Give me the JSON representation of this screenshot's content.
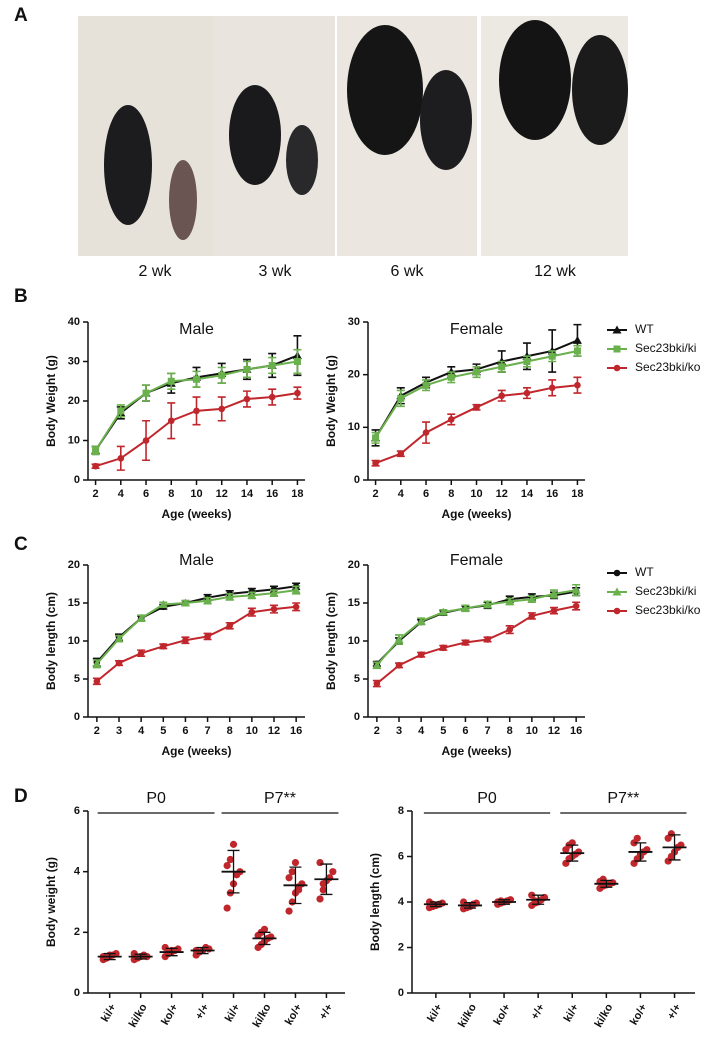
{
  "panel_labels": [
    "A",
    "B",
    "C",
    "D"
  ],
  "photos": {
    "labels": [
      "2 wk",
      "3 wk",
      "6 wk",
      "12 wk"
    ]
  },
  "chart_data": [
    {
      "type": "line",
      "title": "Male",
      "xlabel": "Age (weeks)",
      "ylabel": "Body Weight (g)",
      "x": [
        2,
        4,
        6,
        8,
        10,
        12,
        14,
        16,
        18
      ],
      "xlim": [
        1.4,
        18.6
      ],
      "xticks": [
        2,
        4,
        6,
        8,
        10,
        12,
        14,
        16,
        18
      ],
      "ylim": [
        0,
        40
      ],
      "yticks": [
        0,
        10,
        20,
        30,
        40
      ],
      "series": [
        {
          "color": "#111111",
          "marker": "triangle",
          "values": [
            7.5,
            17,
            22,
            24.5,
            26,
            27,
            28,
            29,
            31.5
          ],
          "errors": [
            1,
            1.5,
            2,
            2.5,
            2.5,
            2.5,
            2.5,
            3,
            5
          ]
        },
        {
          "color": "#6ab04c",
          "marker": "square",
          "values": [
            7.5,
            17.5,
            22,
            25,
            25.5,
            26.5,
            28,
            29,
            30
          ],
          "errors": [
            1,
            1.5,
            2,
            2,
            2,
            2,
            2,
            2,
            3
          ]
        },
        {
          "color": "#c0272d",
          "marker": "circle",
          "values": [
            3.5,
            5.5,
            10,
            15,
            17.5,
            18,
            20.5,
            21,
            22
          ],
          "errors": [
            0.5,
            3,
            5,
            4.5,
            3.5,
            3,
            2,
            2,
            1.5
          ]
        }
      ]
    },
    {
      "type": "line",
      "title": "Female",
      "xlabel": "Age (weeks)",
      "ylabel": "Body Weight (g)",
      "x": [
        2,
        4,
        6,
        8,
        10,
        12,
        14,
        16,
        18
      ],
      "xlim": [
        1.4,
        18.6
      ],
      "xticks": [
        2,
        4,
        6,
        8,
        10,
        12,
        14,
        16,
        18
      ],
      "ylim": [
        0,
        30
      ],
      "yticks": [
        0,
        10,
        20,
        30
      ],
      "legend": "right",
      "series": [
        {
          "name": "WT",
          "color": "#111111",
          "marker": "triangle",
          "values": [
            8,
            16,
            18.5,
            20.5,
            21,
            22.5,
            23.5,
            24.5,
            26.5
          ],
          "errors": [
            1.5,
            1.5,
            1,
            1,
            1,
            2,
            2.5,
            4,
            3
          ]
        },
        {
          "name": "Sec23bki/ki",
          "color": "#6ab04c",
          "marker": "square",
          "values": [
            8,
            15.5,
            18,
            19.5,
            20.5,
            21.5,
            22.5,
            23.5,
            24.5
          ],
          "errors": [
            1,
            1.5,
            1,
            1,
            1,
            1,
            1,
            1,
            1
          ]
        },
        {
          "name": "Sec23bki/ko",
          "color": "#c0272d",
          "marker": "circle",
          "values": [
            3.2,
            5,
            9,
            11.5,
            13.8,
            16,
            16.5,
            17.5,
            18
          ],
          "errors": [
            0.5,
            0.5,
            2,
            1,
            0.5,
            1,
            1,
            1.5,
            1.5
          ]
        }
      ]
    },
    {
      "type": "line",
      "title": "Male",
      "xlabel": "Age (weeks)",
      "ylabel": "Body length (cm)",
      "categories": [
        "2",
        "3",
        "4",
        "5",
        "6",
        "7",
        "8",
        "10",
        "12",
        "16"
      ],
      "ylim": [
        0,
        20
      ],
      "yticks": [
        0,
        5,
        10,
        15,
        20
      ],
      "series": [
        {
          "color": "#111111",
          "marker": "circle",
          "values": [
            7.2,
            10.5,
            13,
            14.5,
            15,
            15.7,
            16.2,
            16.5,
            16.8,
            17.2
          ],
          "errors": [
            0.5,
            0.4,
            0.3,
            0.3,
            0.3,
            0.4,
            0.4,
            0.4,
            0.4,
            0.4
          ]
        },
        {
          "color": "#6ab04c",
          "marker": "triangle",
          "values": [
            7,
            10.3,
            13,
            14.8,
            15,
            15.3,
            15.8,
            16,
            16.3,
            16.7
          ],
          "errors": [
            0.5,
            0.4,
            0.4,
            0.3,
            0.3,
            0.4,
            0.4,
            0.4,
            0.4,
            0.5
          ]
        },
        {
          "color": "#c0272d",
          "marker": "circle",
          "values": [
            4.7,
            7.1,
            8.4,
            9.3,
            10.1,
            10.6,
            12,
            13.8,
            14.2,
            14.5
          ],
          "errors": [
            0.4,
            0.3,
            0.4,
            0.3,
            0.4,
            0.4,
            0.4,
            0.5,
            0.5,
            0.5
          ]
        }
      ]
    },
    {
      "type": "line",
      "title": "Female",
      "xlabel": "Age (weeks)",
      "ylabel": "Body length (cm)",
      "categories": [
        "2",
        "3",
        "4",
        "5",
        "6",
        "7",
        "8",
        "10",
        "12",
        "16"
      ],
      "ylim": [
        0,
        20
      ],
      "yticks": [
        0,
        5,
        10,
        15,
        20
      ],
      "legend": "right",
      "series": [
        {
          "name": "WT",
          "color": "#111111",
          "marker": "circle",
          "values": [
            7,
            10,
            12.5,
            13.7,
            14.3,
            14.7,
            15.5,
            15.8,
            16,
            16.5
          ],
          "errors": [
            0.3,
            0.4,
            0.3,
            0.3,
            0.3,
            0.4,
            0.4,
            0.4,
            0.4,
            0.5
          ]
        },
        {
          "name": "Sec23bki/ki",
          "color": "#6ab04c",
          "marker": "triangle",
          "values": [
            6.8,
            10.2,
            12.6,
            13.8,
            14.3,
            14.8,
            15.2,
            15.5,
            16.2,
            16.7
          ],
          "errors": [
            0.4,
            0.6,
            0.4,
            0.3,
            0.4,
            0.4,
            0.4,
            0.4,
            0.5,
            0.7
          ]
        },
        {
          "name": "Sec23bki/ko",
          "color": "#c0272d",
          "marker": "circle",
          "values": [
            4.4,
            6.8,
            8.2,
            9.1,
            9.8,
            10.2,
            11.5,
            13.3,
            14,
            14.6
          ],
          "errors": [
            0.4,
            0.3,
            0.3,
            0.3,
            0.3,
            0.3,
            0.5,
            0.4,
            0.4,
            0.5
          ]
        }
      ]
    },
    {
      "type": "dotplot",
      "ylabel": "Body weight (g)",
      "color": "#c0272d",
      "ylim": [
        0,
        6
      ],
      "yticks": [
        0,
        2,
        4,
        6
      ],
      "groups": [
        {
          "label": "P0",
          "categories": [
            "ki/+",
            "ki/ko",
            "ko/+",
            "+/+"
          ],
          "points": [
            [
              1.1,
              1.15,
              1.2,
              1.25,
              1.3,
              1.2,
              1.15,
              1.25
            ],
            [
              1.1,
              1.15,
              1.2,
              1.25,
              1.2,
              1.3
            ],
            [
              1.2,
              1.3,
              1.35,
              1.4,
              1.45,
              1.5,
              1.3,
              1.4
            ],
            [
              1.25,
              1.35,
              1.4,
              1.5,
              1.45,
              1.4
            ]
          ],
          "means": [
            1.2,
            1.2,
            1.35,
            1.4
          ],
          "sds": [
            0.1,
            0.08,
            0.12,
            0.1
          ]
        },
        {
          "label": "P7**",
          "categories": [
            "ki/+",
            "ki/ko",
            "ko/+",
            "+/+"
          ],
          "points": [
            [
              2.8,
              3.3,
              3.6,
              3.9,
              4.0,
              4.2,
              4.4,
              4.9,
              3.9
            ],
            [
              1.5,
              1.6,
              1.7,
              1.8,
              1.85,
              1.9,
              2.0,
              2.1
            ],
            [
              2.7,
              3.0,
              3.3,
              3.5,
              3.6,
              3.8,
              4.0,
              4.3,
              3.4
            ],
            [
              3.1,
              3.4,
              3.7,
              3.8,
              4.0,
              4.3,
              3.6
            ]
          ],
          "means": [
            4.0,
            1.8,
            3.55,
            3.75
          ],
          "sds": [
            0.7,
            0.2,
            0.6,
            0.5
          ]
        }
      ]
    },
    {
      "type": "dotplot",
      "ylabel": "Body length (cm)",
      "color": "#c0272d",
      "ylim": [
        0,
        8
      ],
      "yticks": [
        0,
        2,
        4,
        6,
        8
      ],
      "groups": [
        {
          "label": "P0",
          "categories": [
            "ki/+",
            "ki/ko",
            "ko/+",
            "+/+"
          ],
          "points": [
            [
              3.75,
              3.8,
              3.85,
              3.9,
              3.95,
              4.0,
              3.9,
              3.85
            ],
            [
              3.7,
              3.75,
              3.8,
              3.9,
              3.95,
              4.0,
              3.85
            ],
            [
              3.9,
              3.95,
              4.0,
              4.05,
              4.1,
              4.0,
              4.05
            ],
            [
              3.85,
              3.95,
              4.0,
              4.1,
              4.2,
              4.3,
              4.05
            ]
          ],
          "means": [
            3.9,
            3.85,
            4.0,
            4.1
          ],
          "sds": [
            0.1,
            0.12,
            0.1,
            0.2
          ]
        },
        {
          "label": "P7**",
          "categories": [
            "ki/+",
            "ki/ko",
            "ko/+",
            "+/+"
          ],
          "points": [
            [
              5.7,
              5.9,
              6.0,
              6.1,
              6.2,
              6.3,
              6.5,
              6.6
            ],
            [
              4.6,
              4.7,
              4.75,
              4.8,
              4.85,
              4.9,
              5.0
            ],
            [
              5.7,
              5.9,
              6.0,
              6.2,
              6.3,
              6.6,
              6.8,
              6.1
            ],
            [
              5.8,
              6.0,
              6.2,
              6.4,
              6.5,
              6.8,
              7.0
            ]
          ],
          "means": [
            6.15,
            4.8,
            6.2,
            6.4
          ],
          "sds": [
            0.35,
            0.15,
            0.4,
            0.55
          ]
        }
      ]
    }
  ]
}
